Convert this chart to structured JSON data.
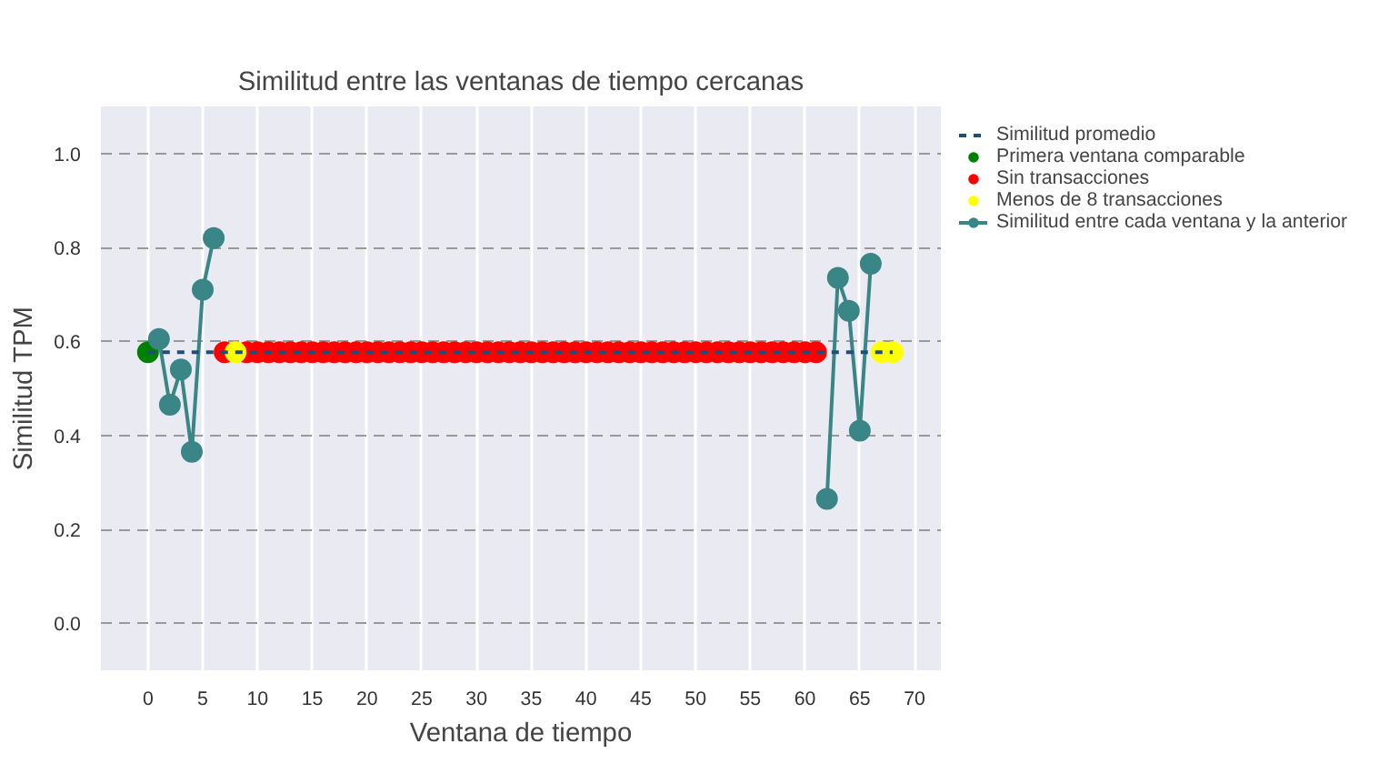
{
  "chart_data": {
    "type": "line",
    "title": "Similitud entre las ventanas de tiempo cercanas",
    "xlabel": "Ventana de tiempo",
    "ylabel": "Similitud TPM",
    "xlim": [
      -4.3,
      72.4
    ],
    "ylim": [
      -0.1,
      1.1
    ],
    "xticks": [
      0,
      5,
      10,
      15,
      20,
      25,
      30,
      35,
      40,
      45,
      50,
      55,
      60,
      65,
      70
    ],
    "yticks": [
      {
        "value": 0.0,
        "label": "0.0"
      },
      0.2,
      0.4,
      0.6,
      0.8,
      {
        "value": 1.0,
        "label": "1.0"
      }
    ],
    "grid": true,
    "legend": "right",
    "series": [
      {
        "name": "Similitud promedio",
        "line_style": "dashed",
        "marker": "none",
        "color": "#1f4e79",
        "x": [
          0,
          68
        ],
        "values": [
          0.577,
          0.577
        ]
      },
      {
        "name": "Primera ventana comparable",
        "type": "scatter",
        "marker": "circle",
        "color": "#008000",
        "x": [
          0
        ],
        "values": [
          0.577
        ]
      },
      {
        "name": "Sin transacciones",
        "type": "scatter",
        "marker": "circle",
        "color": "#ff0000",
        "x": [
          7,
          9,
          10,
          11,
          12,
          13,
          14,
          15,
          16,
          17,
          18,
          19,
          20,
          21,
          22,
          23,
          24,
          25,
          26,
          27,
          28,
          29,
          30,
          31,
          32,
          33,
          34,
          35,
          36,
          37,
          38,
          39,
          40,
          41,
          42,
          43,
          44,
          45,
          46,
          47,
          48,
          49,
          50,
          51,
          52,
          53,
          54,
          55,
          56,
          57,
          58,
          59,
          60,
          61
        ],
        "values": [
          0.577,
          0.577,
          0.577,
          0.577,
          0.577,
          0.577,
          0.577,
          0.577,
          0.577,
          0.577,
          0.577,
          0.577,
          0.577,
          0.577,
          0.577,
          0.577,
          0.577,
          0.577,
          0.577,
          0.577,
          0.577,
          0.577,
          0.577,
          0.577,
          0.577,
          0.577,
          0.577,
          0.577,
          0.577,
          0.577,
          0.577,
          0.577,
          0.577,
          0.577,
          0.577,
          0.577,
          0.577,
          0.577,
          0.577,
          0.577,
          0.577,
          0.577,
          0.577,
          0.577,
          0.577,
          0.577,
          0.577,
          0.577,
          0.577,
          0.577,
          0.577,
          0.577,
          0.577,
          0.577
        ]
      },
      {
        "name": "Menos de 8 transacciones",
        "type": "scatter",
        "marker": "circle",
        "color": "#ffff00",
        "x": [
          8,
          67,
          68
        ],
        "values": [
          0.577,
          0.577,
          0.577
        ]
      },
      {
        "name": "Similitud entre cada ventana y la anterior",
        "marker": "circle",
        "line_style": "solid",
        "color": "#3a8585",
        "x": [
          1,
          2,
          3,
          4,
          5,
          6,
          null,
          62,
          63,
          64,
          65,
          66
        ],
        "values": [
          0.605,
          0.465,
          0.54,
          0.365,
          0.71,
          0.82,
          null,
          0.265,
          0.735,
          0.665,
          0.41,
          0.765
        ]
      }
    ]
  }
}
